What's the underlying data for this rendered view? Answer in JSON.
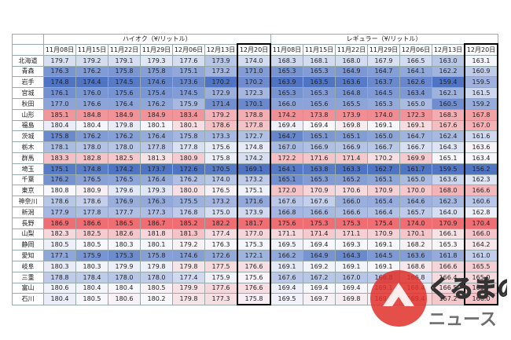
{
  "table": {
    "groups": [
      {
        "title": "ハイオク（¥/リットル）",
        "dates": [
          "11月08日",
          "11月15日",
          "11月22日",
          "11月29日",
          "12月06日",
          "12月13日",
          "12月20日"
        ]
      },
      {
        "title": "レギュラー（¥/リットル）",
        "dates": [
          "11月08日",
          "11月15日",
          "11月22日",
          "11月29日",
          "12月06日",
          "12月13日",
          "12月20日"
        ]
      }
    ],
    "rows": [
      {
        "name": "北海道",
        "values": [
          [
            "179.7",
            "179.2",
            "179.1",
            "179.3",
            "177.6",
            "173.9",
            "174.0"
          ],
          [
            "168.3",
            "168.1",
            "168.0",
            "167.9",
            "166.5",
            "163.0",
            "163.1"
          ]
        ]
      },
      {
        "name": "青森",
        "values": [
          [
            "176.3",
            "176.2",
            "175.8",
            "175.8",
            "175.1",
            "173.2",
            "171.0"
          ],
          [
            "165.3",
            "165.3",
            "164.9",
            "164.7",
            "164.1",
            "162.2",
            "160.9"
          ]
        ]
      },
      {
        "name": "岩手",
        "values": [
          [
            "174.8",
            "174.4",
            "174.5",
            "174.6",
            "173.6",
            "170.2",
            "170.2"
          ],
          [
            "163.9",
            "163.5",
            "163.6",
            "163.7",
            "162.6",
            "159.4",
            "159.5"
          ]
        ]
      },
      {
        "name": "宮城",
        "values": [
          [
            "176.1",
            "176.0",
            "175.6",
            "175.4",
            "174.5",
            "172.9",
            "172.3"
          ],
          [
            "165.3",
            "165.3",
            "164.8",
            "164.5",
            "163.4",
            "162.1",
            "161.5"
          ]
        ]
      },
      {
        "name": "秋田",
        "values": [
          [
            "177.0",
            "176.6",
            "176.4",
            "176.2",
            "175.9",
            "171.4",
            "170.1"
          ],
          [
            "166.0",
            "165.6",
            "165.5",
            "165.3",
            "165.0",
            "160.5",
            "159.2"
          ]
        ]
      },
      {
        "name": "山形",
        "values": [
          [
            "185.1",
            "184.8",
            "184.9",
            "184.9",
            "183.4",
            "179.2",
            "178.8"
          ],
          [
            "174.2",
            "173.8",
            "173.9",
            "174.0",
            "172.3",
            "168.3",
            "167.8"
          ]
        ]
      },
      {
        "name": "福島",
        "values": [
          [
            "180.4",
            "180.4",
            "179.8",
            "180.1",
            "180.1",
            "178.6",
            "177.8"
          ],
          [
            "169.4",
            "169.4",
            "169.8",
            "169.1",
            "169.1",
            "167.6",
            "167.0"
          ]
        ]
      },
      {
        "name": "茨城",
        "values": [
          [
            "175.8",
            "176.2",
            "176.2",
            "176.4",
            "175.8",
            "173.3",
            "172.7"
          ],
          [
            "164.7",
            "165.1",
            "165.1",
            "165.0",
            "164.7",
            "162.4",
            "161.6"
          ]
        ]
      },
      {
        "name": "栃木",
        "values": [
          [
            "178.1",
            "178.0",
            "178.0",
            "177.8",
            "177.8",
            "175.6",
            "174.8"
          ],
          [
            "167.0",
            "166.9",
            "166.9",
            "166.7",
            "166.7",
            "164.3",
            "163.6"
          ]
        ]
      },
      {
        "name": "群馬",
        "values": [
          [
            "183.3",
            "182.8",
            "182.5",
            "181.3",
            "180.9",
            "175.8",
            "174.2"
          ],
          [
            "172.2",
            "171.6",
            "171.4",
            "170.2",
            "169.9",
            "165.1",
            "163.4"
          ]
        ]
      },
      {
        "name": "埼玉",
        "values": [
          [
            "175.1",
            "174.8",
            "174.2",
            "173.7",
            "172.6",
            "170.5",
            "169.1"
          ],
          [
            "164.1",
            "163.8",
            "163.3",
            "162.7",
            "161.7",
            "159.5",
            "156.2"
          ]
        ]
      },
      {
        "name": "千葉",
        "values": [
          [
            "176.2",
            "176.5",
            "176.5",
            "176.4",
            "176.2",
            "174.0",
            "173.2"
          ],
          [
            "165.1",
            "165.3",
            "165.2",
            "165.1",
            "165.0",
            "163.6",
            "162.3"
          ]
        ]
      },
      {
        "name": "東京",
        "values": [
          [
            "180.8",
            "180.9",
            "179.6",
            "179.3",
            "180.0",
            "176.5",
            "175.1"
          ],
          [
            "172.0",
            "170.9",
            "170.6",
            "170.9",
            "170.0",
            "168.0",
            "166.6"
          ]
        ]
      },
      {
        "name": "神奈川",
        "values": [
          [
            "178.6",
            "178.6",
            "176.9",
            "176.3",
            "175.5",
            "173.2",
            "171.6"
          ],
          [
            "167.6",
            "167.6",
            "166.0",
            "165.4",
            "164.6",
            "162.3",
            "160.6"
          ]
        ]
      },
      {
        "name": "新潟",
        "values": [
          [
            "177.9",
            "177.8",
            "177.7",
            "177.3",
            "176.8",
            "175.0",
            "173.9"
          ],
          [
            "166.8",
            "166.6",
            "166.6",
            "166.4",
            "165.7",
            "164.0",
            "162.8"
          ]
        ]
      },
      {
        "name": "長野",
        "values": [
          [
            "186.9",
            "186.6",
            "186.5",
            "186.7",
            "185.2",
            "182.2",
            "181.7"
          ],
          [
            "175.6",
            "175.3",
            "175.3",
            "175.4",
            "174.0",
            "170.9",
            "170.4"
          ]
        ]
      },
      {
        "name": "山梨",
        "values": [
          [
            "182.3",
            "182.5",
            "182.6",
            "181.8",
            "181.3",
            "177.4",
            "177.0"
          ],
          [
            "171.1",
            "171.4",
            "171.1",
            "170.9",
            "170.1",
            "166.1",
            "166.0"
          ]
        ]
      },
      {
        "name": "静岡",
        "values": [
          [
            "180.5",
            "180.5",
            "180.3",
            "180.1",
            "179.2",
            "176.3",
            "175.3"
          ],
          [
            "169.5",
            "169.4",
            "169.3",
            "169.1",
            "168.2",
            "165.3",
            "164.2"
          ]
        ]
      },
      {
        "name": "愛知",
        "values": [
          [
            "177.1",
            "175.9",
            "175.3",
            "175.8",
            "174.6",
            "172.6",
            "172.1"
          ],
          [
            "166.2",
            "164.9",
            "164.3",
            "164.5",
            "163.6",
            "161.8",
            "161.0"
          ]
        ]
      },
      {
        "name": "岐阜",
        "values": [
          [
            "180.3",
            "180.3",
            "179.9",
            "179.8",
            "179.8",
            "177.5",
            "176.6"
          ],
          [
            "169.1",
            "169.2",
            "169.1",
            "169.1",
            "168.6",
            "166.6",
            "165.5"
          ]
        ]
      },
      {
        "name": "三重",
        "values": [
          [
            "178.8",
            "178.4",
            "178.0",
            "178.0",
            "177.4",
            "175.9",
            "175.6"
          ],
          [
            "167.6",
            "167.2",
            "167.0",
            "166.8",
            "166.8",
            "166.4",
            "165.0"
          ]
        ]
      },
      {
        "name": "富山",
        "values": [
          [
            "180.6",
            "180.4",
            "180.4",
            "180.5",
            "179.9",
            "177.6",
            "176.6"
          ],
          [
            "169.4",
            "169.4",
            "169.4",
            "169.1",
            "168.4",
            "166.5",
            "165.7"
          ]
        ]
      },
      {
        "name": "石川",
        "values": [
          [
            "180.4",
            "180.5",
            "180.6",
            "180.2",
            "179.8",
            "177.3",
            "175.8"
          ],
          [
            "169.5",
            "169.7",
            "169.8",
            "169.4",
            "169.4",
            "167.2",
            "166.0"
          ]
        ]
      }
    ]
  },
  "logo": {
    "top": "くるまの",
    "bottom": "ニュース"
  }
}
